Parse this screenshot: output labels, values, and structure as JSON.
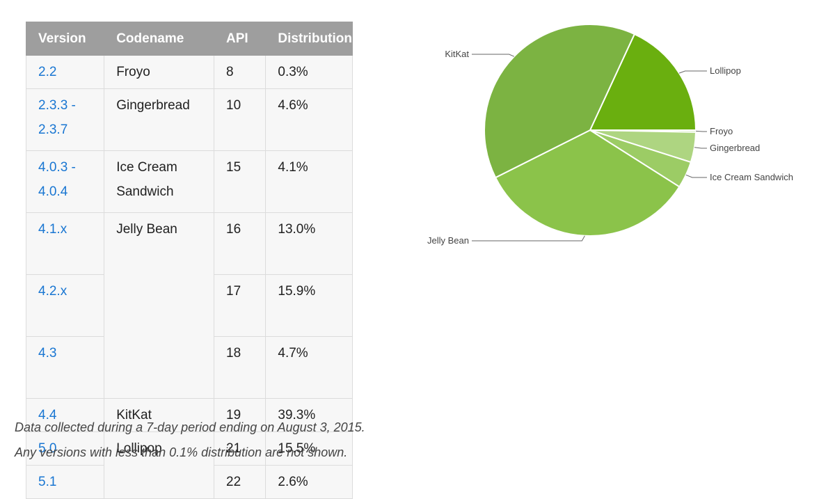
{
  "table": {
    "headers": [
      "Version",
      "Codename",
      "API",
      "Distribution"
    ],
    "groups": [
      {
        "codename": "Froyo",
        "rows": [
          {
            "version": "2.2",
            "api": "8",
            "distribution": "0.3%"
          }
        ]
      },
      {
        "codename": "Gingerbread",
        "rows": [
          {
            "version": "2.3.3 - 2.3.7",
            "api": "10",
            "distribution": "4.6%"
          }
        ]
      },
      {
        "codename": "Ice Cream Sandwich",
        "rows": [
          {
            "version": "4.0.3 - 4.0.4",
            "api": "15",
            "distribution": "4.1%"
          }
        ]
      },
      {
        "codename": "Jelly Bean",
        "rows": [
          {
            "version": "4.1.x",
            "api": "16",
            "distribution": "13.0%"
          },
          {
            "version": "4.2.x",
            "api": "17",
            "distribution": "15.9%"
          },
          {
            "version": "4.3",
            "api": "18",
            "distribution": "4.7%"
          }
        ]
      },
      {
        "codename": "KitKat",
        "rows": [
          {
            "version": "4.4",
            "api": "19",
            "distribution": "39.3%"
          }
        ]
      },
      {
        "codename": "Lollipop",
        "rows": [
          {
            "version": "5.0",
            "api": "21",
            "distribution": "15.5%"
          },
          {
            "version": "5.1",
            "api": "22",
            "distribution": "2.6%"
          }
        ]
      }
    ]
  },
  "notes": {
    "line1": "Data collected during a 7-day period ending on August 3, 2015.",
    "line2": "Any versions with less than 0.1% distribution are not shown."
  },
  "chart_data": {
    "type": "pie",
    "title": "",
    "labels": [
      "Lollipop",
      "Froyo",
      "Gingerbread",
      "Ice Cream Sandwich",
      "Jelly Bean",
      "KitKat"
    ],
    "values": [
      18.1,
      0.3,
      4.6,
      4.1,
      33.6,
      39.3
    ],
    "colors": [
      "#6aaf0f",
      "#c5e1a5",
      "#aed581",
      "#9ccc65",
      "#8bc34a",
      "#7cb342"
    ],
    "start": "3 o'clock, clockwise",
    "legend": "leader-line labels outside slices"
  }
}
